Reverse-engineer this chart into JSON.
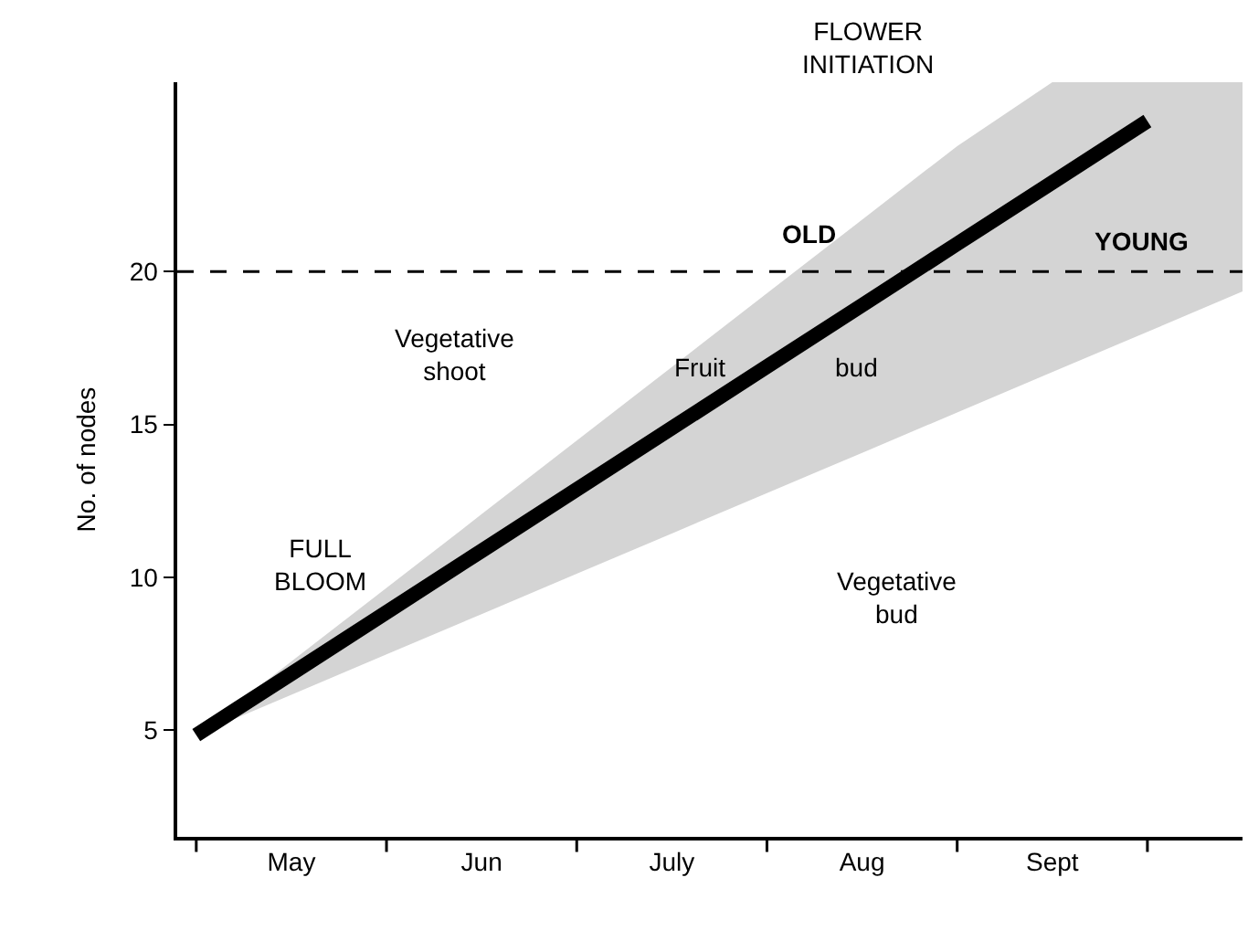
{
  "chart_data": {
    "type": "line",
    "categories": [
      null,
      "May",
      null,
      "Jun",
      null,
      "July",
      null,
      "Aug",
      null,
      "Sept",
      null,
      null
    ],
    "series": [
      {
        "color": "#000000",
        "values": [
          4.83,
          6.84,
          8.85,
          10.86,
          12.87,
          14.88,
          16.89,
          18.9,
          20.91,
          22.92,
          24.93,
          null
        ],
        "lower": [
          4.83,
          6.15,
          7.47,
          8.79,
          10.11,
          11.43,
          12.75,
          14.07,
          15.39,
          16.71,
          18.03,
          19.35
        ],
        "upper": [
          4.83,
          7.24,
          9.65,
          12.06,
          14.47,
          16.88,
          19.29,
          21.7,
          24.11,
          26.2,
          26.2,
          26.2
        ]
      }
    ],
    "ylabel": "No. of nodes",
    "ylim": [
      1.5,
      26.2
    ],
    "yticks": [
      5,
      10,
      15,
      20
    ],
    "ref_lines": [
      {
        "axis": "y",
        "value": 20,
        "label": null,
        "color": "#000000",
        "line_style": "dashed"
      }
    ],
    "annotations": [
      "FULL\nBLOOM",
      "FLOWER\nINITIATION",
      "OLD",
      "YOUNG",
      "Vegetative\nshoot",
      "Fruit",
      "bud",
      "Vegetative\nbud"
    ],
    "marker": "none",
    "line_style": "solid"
  }
}
